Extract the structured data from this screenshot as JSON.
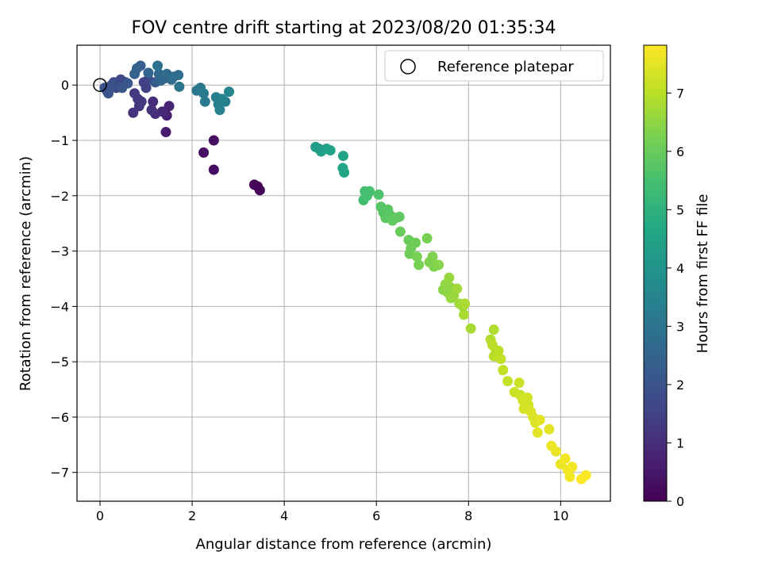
{
  "chart_data": {
    "type": "scatter",
    "title": "FOV centre drift starting at 2023/08/20 01:35:34",
    "xlabel": "Angular distance from reference (arcmin)",
    "ylabel": "Rotation from reference (arcmin)",
    "xlim": [
      -0.5,
      11.08
    ],
    "ylim": [
      -7.52,
      0.72
    ],
    "xticks": [
      0,
      2,
      4,
      6,
      8,
      10
    ],
    "yticks": [
      0,
      -1,
      -2,
      -3,
      -4,
      -5,
      -6,
      -7
    ],
    "grid": true,
    "legend": {
      "position": "top-right",
      "entries": [
        "Reference platepar"
      ]
    },
    "reference_point": {
      "x": 0,
      "y": 0
    },
    "colorbar": {
      "label": "Hours from first FF file",
      "range": [
        0,
        7.82
      ],
      "ticks": [
        0,
        1,
        2,
        3,
        4,
        5,
        6,
        7
      ],
      "colormap": "viridis"
    },
    "series": [
      {
        "points": [
          {
            "x": 3.35,
            "y": -1.8,
            "c": 0.05
          },
          {
            "x": 3.42,
            "y": -1.83,
            "c": 0.05
          },
          {
            "x": 3.47,
            "y": -1.9,
            "c": 0.05
          },
          {
            "x": 2.47,
            "y": -1.0,
            "c": 0.3
          },
          {
            "x": 2.25,
            "y": -1.22,
            "c": 0.3
          },
          {
            "x": 2.47,
            "y": -1.53,
            "c": 0.3
          },
          {
            "x": 1.43,
            "y": -0.85,
            "c": 0.6
          },
          {
            "x": 1.45,
            "y": -0.55,
            "c": 0.7
          },
          {
            "x": 1.5,
            "y": -0.38,
            "c": 0.8
          },
          {
            "x": 1.35,
            "y": -0.48,
            "c": 0.9
          },
          {
            "x": 1.2,
            "y": -0.52,
            "c": 1.0
          },
          {
            "x": 1.15,
            "y": -0.3,
            "c": 1.0
          },
          {
            "x": 1.12,
            "y": -0.45,
            "c": 1.1
          },
          {
            "x": 0.72,
            "y": -0.5,
            "c": 1.1
          },
          {
            "x": 0.85,
            "y": -0.38,
            "c": 1.2
          },
          {
            "x": 0.82,
            "y": -0.25,
            "c": 1.2
          },
          {
            "x": 0.75,
            "y": -0.15,
            "c": 1.3
          },
          {
            "x": 0.9,
            "y": -0.3,
            "c": 1.3
          },
          {
            "x": 1.0,
            "y": -0.05,
            "c": 1.5
          },
          {
            "x": 0.95,
            "y": 0.05,
            "c": 1.5
          },
          {
            "x": 1.05,
            "y": 0.1,
            "c": 1.6
          },
          {
            "x": 0.55,
            "y": 0.05,
            "c": 1.6
          },
          {
            "x": 0.45,
            "y": 0.1,
            "c": 1.7
          },
          {
            "x": 0.4,
            "y": 0.0,
            "c": 1.7
          },
          {
            "x": 0.35,
            "y": -0.05,
            "c": 1.8
          },
          {
            "x": 0.3,
            "y": 0.05,
            "c": 1.8
          },
          {
            "x": 0.25,
            "y": 0.0,
            "c": 1.9
          },
          {
            "x": 0.15,
            "y": -0.1,
            "c": 1.9
          },
          {
            "x": 0.1,
            "y": -0.05,
            "c": 2.0
          },
          {
            "x": 0.18,
            "y": -0.15,
            "c": 2.0
          },
          {
            "x": 0.48,
            "y": -0.05,
            "c": 2.1
          },
          {
            "x": 0.6,
            "y": 0.03,
            "c": 2.1
          },
          {
            "x": 1.2,
            "y": 0.05,
            "c": 2.2
          },
          {
            "x": 1.4,
            "y": 0.12,
            "c": 2.2
          },
          {
            "x": 0.88,
            "y": 0.35,
            "c": 2.3
          },
          {
            "x": 0.8,
            "y": 0.3,
            "c": 2.4
          },
          {
            "x": 0.75,
            "y": 0.2,
            "c": 2.4
          },
          {
            "x": 1.05,
            "y": 0.22,
            "c": 2.5
          },
          {
            "x": 1.28,
            "y": 0.2,
            "c": 2.6
          },
          {
            "x": 1.32,
            "y": 0.08,
            "c": 2.6
          },
          {
            "x": 1.45,
            "y": 0.2,
            "c": 2.7
          },
          {
            "x": 1.55,
            "y": 0.1,
            "c": 2.7
          },
          {
            "x": 1.6,
            "y": 0.15,
            "c": 2.8
          },
          {
            "x": 1.7,
            "y": 0.18,
            "c": 2.8
          },
          {
            "x": 1.25,
            "y": 0.35,
            "c": 2.9
          },
          {
            "x": 1.72,
            "y": -0.03,
            "c": 3.0
          },
          {
            "x": 2.1,
            "y": -0.1,
            "c": 3.1
          },
          {
            "x": 2.18,
            "y": -0.05,
            "c": 3.1
          },
          {
            "x": 2.25,
            "y": -0.15,
            "c": 3.2
          },
          {
            "x": 2.28,
            "y": -0.3,
            "c": 3.2
          },
          {
            "x": 2.52,
            "y": -0.22,
            "c": 3.3
          },
          {
            "x": 2.57,
            "y": -0.35,
            "c": 3.3
          },
          {
            "x": 2.6,
            "y": -0.45,
            "c": 3.4
          },
          {
            "x": 2.72,
            "y": -0.3,
            "c": 3.4
          },
          {
            "x": 2.65,
            "y": -0.25,
            "c": 3.5
          },
          {
            "x": 2.8,
            "y": -0.12,
            "c": 3.5
          },
          {
            "x": 4.68,
            "y": -1.12,
            "c": 4.3
          },
          {
            "x": 4.75,
            "y": -1.15,
            "c": 4.3
          },
          {
            "x": 4.8,
            "y": -1.2,
            "c": 4.4
          },
          {
            "x": 4.92,
            "y": -1.15,
            "c": 4.4
          },
          {
            "x": 5.0,
            "y": -1.18,
            "c": 4.5
          },
          {
            "x": 5.28,
            "y": -1.28,
            "c": 4.5
          },
          {
            "x": 5.27,
            "y": -1.5,
            "c": 4.6
          },
          {
            "x": 5.3,
            "y": -1.58,
            "c": 4.6
          },
          {
            "x": 5.75,
            "y": -1.92,
            "c": 5.4
          },
          {
            "x": 5.72,
            "y": -2.08,
            "c": 5.4
          },
          {
            "x": 5.8,
            "y": -2.0,
            "c": 5.5
          },
          {
            "x": 5.85,
            "y": -1.92,
            "c": 5.5
          },
          {
            "x": 6.05,
            "y": -1.98,
            "c": 5.6
          },
          {
            "x": 6.1,
            "y": -2.2,
            "c": 5.7
          },
          {
            "x": 6.15,
            "y": -2.3,
            "c": 5.7
          },
          {
            "x": 6.2,
            "y": -2.4,
            "c": 5.8
          },
          {
            "x": 6.25,
            "y": -2.25,
            "c": 5.8
          },
          {
            "x": 6.3,
            "y": -2.35,
            "c": 5.8
          },
          {
            "x": 6.35,
            "y": -2.45,
            "c": 5.9
          },
          {
            "x": 6.42,
            "y": -2.4,
            "c": 5.9
          },
          {
            "x": 6.5,
            "y": -2.38,
            "c": 5.9
          },
          {
            "x": 6.52,
            "y": -2.65,
            "c": 6.0
          },
          {
            "x": 6.7,
            "y": -2.8,
            "c": 6.0
          },
          {
            "x": 6.75,
            "y": -2.95,
            "c": 6.1
          },
          {
            "x": 6.72,
            "y": -3.05,
            "c": 6.1
          },
          {
            "x": 6.85,
            "y": -2.85,
            "c": 6.1
          },
          {
            "x": 6.88,
            "y": -3.1,
            "c": 6.2
          },
          {
            "x": 6.92,
            "y": -3.25,
            "c": 6.2
          },
          {
            "x": 7.1,
            "y": -2.77,
            "c": 6.2
          },
          {
            "x": 7.15,
            "y": -3.2,
            "c": 6.3
          },
          {
            "x": 7.22,
            "y": -3.1,
            "c": 6.3
          },
          {
            "x": 7.25,
            "y": -3.28,
            "c": 6.3
          },
          {
            "x": 7.35,
            "y": -3.25,
            "c": 6.4
          },
          {
            "x": 7.45,
            "y": -3.7,
            "c": 6.4
          },
          {
            "x": 7.5,
            "y": -3.6,
            "c": 6.5
          },
          {
            "x": 7.55,
            "y": -3.75,
            "c": 6.5
          },
          {
            "x": 7.6,
            "y": -3.65,
            "c": 6.5
          },
          {
            "x": 7.62,
            "y": -3.85,
            "c": 6.6
          },
          {
            "x": 7.58,
            "y": -3.48,
            "c": 6.6
          },
          {
            "x": 7.68,
            "y": -3.8,
            "c": 6.6
          },
          {
            "x": 7.75,
            "y": -3.68,
            "c": 6.7
          },
          {
            "x": 7.8,
            "y": -3.95,
            "c": 6.7
          },
          {
            "x": 7.88,
            "y": -4.0,
            "c": 6.7
          },
          {
            "x": 7.92,
            "y": -3.95,
            "c": 6.8
          },
          {
            "x": 7.9,
            "y": -4.15,
            "c": 6.8
          },
          {
            "x": 8.05,
            "y": -4.4,
            "c": 6.8
          },
          {
            "x": 8.55,
            "y": -4.42,
            "c": 6.9
          },
          {
            "x": 8.48,
            "y": -4.6,
            "c": 6.9
          },
          {
            "x": 8.52,
            "y": -4.7,
            "c": 7.0
          },
          {
            "x": 8.6,
            "y": -4.8,
            "c": 7.0
          },
          {
            "x": 8.65,
            "y": -4.8,
            "c": 7.0
          },
          {
            "x": 8.55,
            "y": -4.9,
            "c": 7.0
          },
          {
            "x": 8.7,
            "y": -4.95,
            "c": 7.1
          },
          {
            "x": 8.75,
            "y": -5.15,
            "c": 7.1
          },
          {
            "x": 8.85,
            "y": -5.35,
            "c": 7.1
          },
          {
            "x": 9.1,
            "y": -5.38,
            "c": 7.2
          },
          {
            "x": 9.0,
            "y": -5.55,
            "c": 7.2
          },
          {
            "x": 9.12,
            "y": -5.6,
            "c": 7.2
          },
          {
            "x": 9.18,
            "y": -5.7,
            "c": 7.3
          },
          {
            "x": 9.2,
            "y": -5.85,
            "c": 7.3
          },
          {
            "x": 9.28,
            "y": -5.65,
            "c": 7.3
          },
          {
            "x": 9.3,
            "y": -5.78,
            "c": 7.3
          },
          {
            "x": 9.35,
            "y": -5.9,
            "c": 7.4
          },
          {
            "x": 9.4,
            "y": -6.0,
            "c": 7.4
          },
          {
            "x": 9.45,
            "y": -6.1,
            "c": 7.4
          },
          {
            "x": 9.55,
            "y": -6.05,
            "c": 7.5
          },
          {
            "x": 9.5,
            "y": -6.28,
            "c": 7.5
          },
          {
            "x": 9.75,
            "y": -6.22,
            "c": 7.5
          },
          {
            "x": 9.8,
            "y": -6.52,
            "c": 7.6
          },
          {
            "x": 9.9,
            "y": -6.62,
            "c": 7.6
          },
          {
            "x": 10.0,
            "y": -6.85,
            "c": 7.6
          },
          {
            "x": 10.1,
            "y": -6.75,
            "c": 7.7
          },
          {
            "x": 10.15,
            "y": -6.95,
            "c": 7.7
          },
          {
            "x": 10.25,
            "y": -6.9,
            "c": 7.7
          },
          {
            "x": 10.2,
            "y": -7.08,
            "c": 7.7
          },
          {
            "x": 10.45,
            "y": -7.12,
            "c": 7.8
          },
          {
            "x": 10.55,
            "y": -7.05,
            "c": 7.8
          }
        ]
      }
    ]
  }
}
